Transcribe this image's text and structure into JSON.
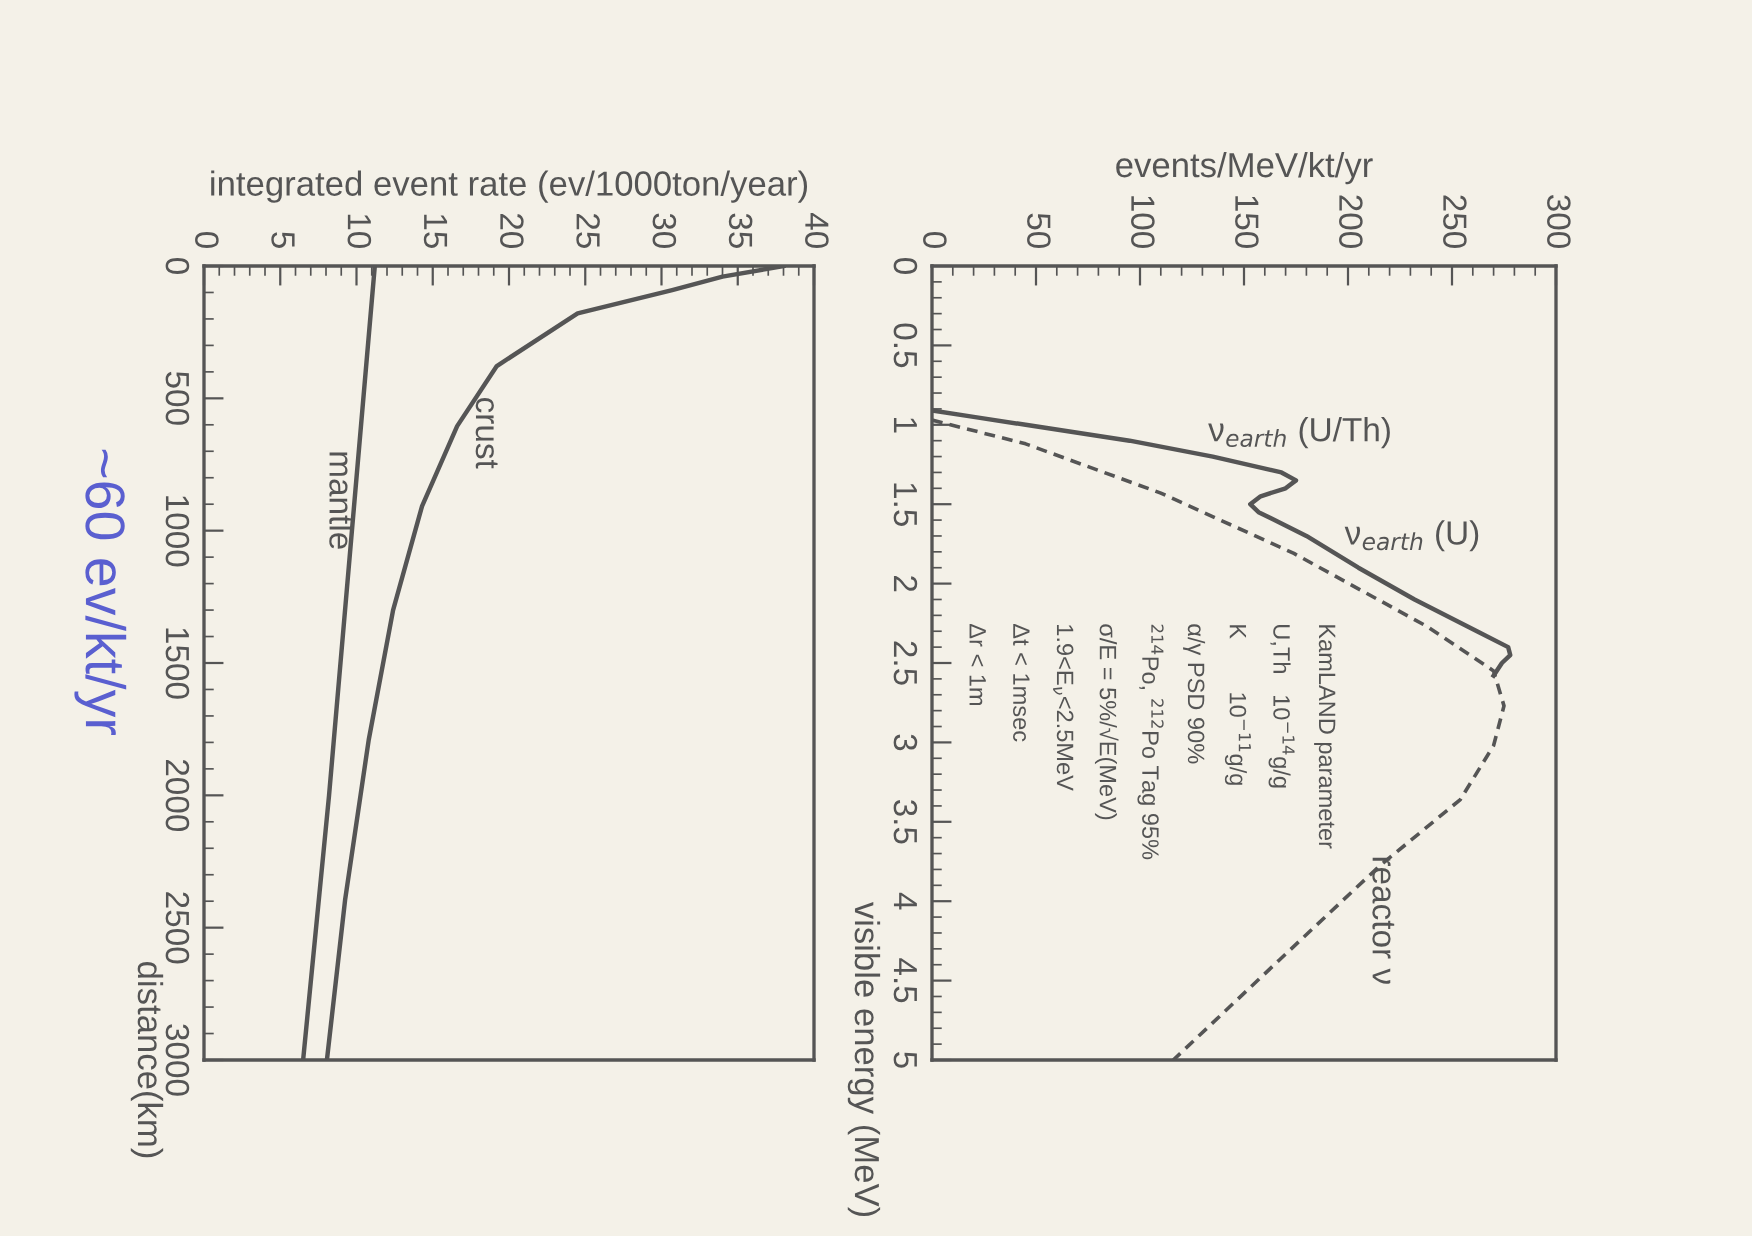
{
  "chart_data": [
    {
      "type": "line",
      "ylabel": "visible energy (MeV)",
      "xlabel": "events/MeV/kt/yr",
      "ylim": [
        5,
        0
      ],
      "yticks": [
        0,
        0.5,
        1,
        1.5,
        2,
        2.5,
        3,
        3.5,
        4,
        4.5,
        5
      ],
      "xlim": [
        0,
        300
      ],
      "xticks": [
        0,
        50,
        100,
        150,
        200,
        250,
        300
      ],
      "grid": false,
      "legend": false,
      "series": [
        {
          "color": "#555555",
          "line_style": "solid",
          "values": [
            0.91,
            0.95,
            1.0,
            1.1,
            1.2,
            1.3,
            1.35,
            1.4,
            1.45,
            1.5,
            1.55,
            1.7,
            1.9,
            2.1,
            2.3,
            2.4,
            2.45,
            2.5,
            2.58
          ],
          "x": [
            0,
            20,
            45,
            95,
            135,
            168,
            175,
            170,
            158,
            153,
            157,
            180,
            205,
            232,
            262,
            277,
            278,
            274,
            270
          ]
        },
        {
          "color": "#555555",
          "line_style": "dashed",
          "values": [
            0.97,
            1.12,
            1.43,
            1.81,
            2.27,
            2.55,
            2.77,
            3.02,
            3.36,
            3.78,
            4.37,
            5.0
          ],
          "x": [
            0,
            45,
            110,
            174,
            238,
            270,
            275,
            270,
            254,
            215,
            167,
            116
          ]
        }
      ],
      "annotations": [
        "ν$_{earth}$ (U/Th)",
        "ν$_{earth}$ (U)",
        "reactor ν",
        "KamLAND parameter",
        "U,Th   10$^{−14}$g/g",
        "K        10$^{−11}$g/g",
        "α/γ PSD 90%",
        "$^{214}$Po, $^{212}$Po Tag 95%",
        "σ/E = 5%/√E(MeV)",
        "1.9<E$_{ν}$<2.5MeV",
        "Δt < 1msec",
        "Δr < 1m"
      ]
    },
    {
      "type": "line",
      "ylabel": "distance(km)",
      "xlabel": "integrated event rate (ev/1000ton/year)",
      "ylim": [
        3000,
        0
      ],
      "yticks": [
        0,
        500,
        1000,
        1500,
        2000,
        2500,
        3000
      ],
      "xlim": [
        0,
        40
      ],
      "xticks": [
        0,
        5,
        10,
        15,
        20,
        25,
        30,
        35,
        40
      ],
      "grid": false,
      "legend": false,
      "series": [
        {
          "color": "#555555",
          "line_style": "solid",
          "values": [
            0,
            40,
            91,
            179,
            378,
            605,
            907,
            1300,
            1791,
            2396,
            3000
          ],
          "x": [
            38,
            34,
            30.7,
            24.5,
            19.2,
            16.6,
            14.3,
            12.4,
            10.8,
            9.25,
            8.06
          ]
        },
        {
          "color": "#555555",
          "line_style": "solid",
          "values": [
            0,
            1000,
            2000,
            3000
          ],
          "x": [
            11.2,
            9.7,
            8.2,
            6.5
          ]
        }
      ],
      "annotations": [
        "crust",
        "mantle",
        "~60 ev/kt/yr"
      ]
    }
  ]
}
